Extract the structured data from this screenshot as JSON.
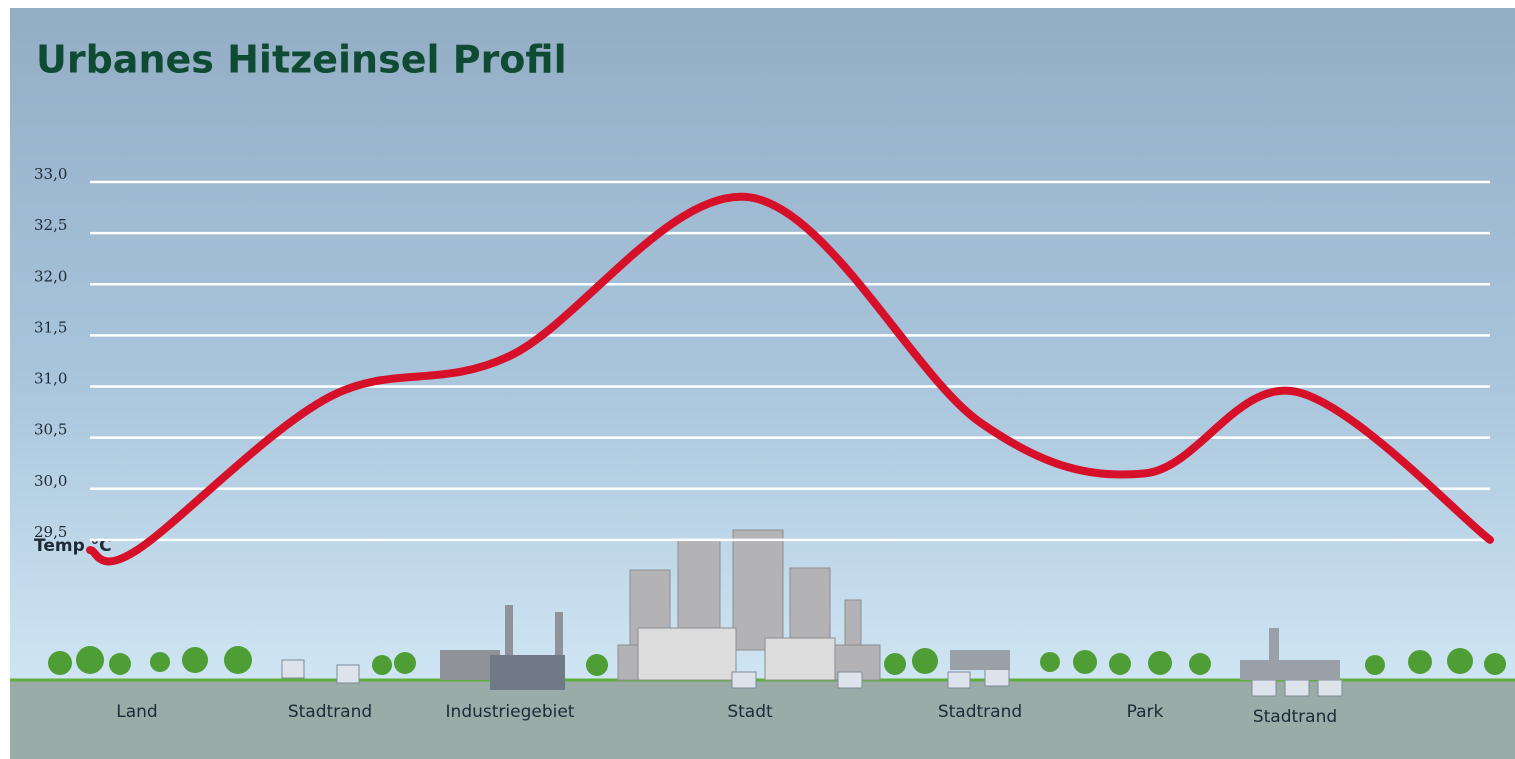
{
  "chart_data": {
    "type": "line",
    "title": "Urbanes Hitzeinsel Profil",
    "y_label": "Temp °C",
    "categories": [
      null,
      "Land",
      "Stadtrand",
      "Industriegebiet",
      "Stadt",
      "Stadtrand",
      "Park",
      "Stadtrand",
      null
    ],
    "values": [
      29.4,
      29.4,
      30.9,
      31.3,
      32.85,
      30.65,
      30.15,
      30.95,
      29.5
    ],
    "color": "#d7102a",
    "ylim": [
      29.0,
      33.0
    ],
    "yticks": [
      {
        "value": 29.5,
        "label": "29,5"
      },
      {
        "value": 30.0,
        "label": "30,0"
      },
      {
        "value": 30.5,
        "label": "30,5"
      },
      {
        "value": 31.0,
        "label": "31,0"
      },
      {
        "value": 31.5,
        "label": "31,5"
      },
      {
        "value": 32.0,
        "label": "32,0"
      },
      {
        "value": 32.5,
        "label": "32,5"
      },
      {
        "value": 33.0,
        "label": "33,0"
      }
    ],
    "grid": true
  }
}
